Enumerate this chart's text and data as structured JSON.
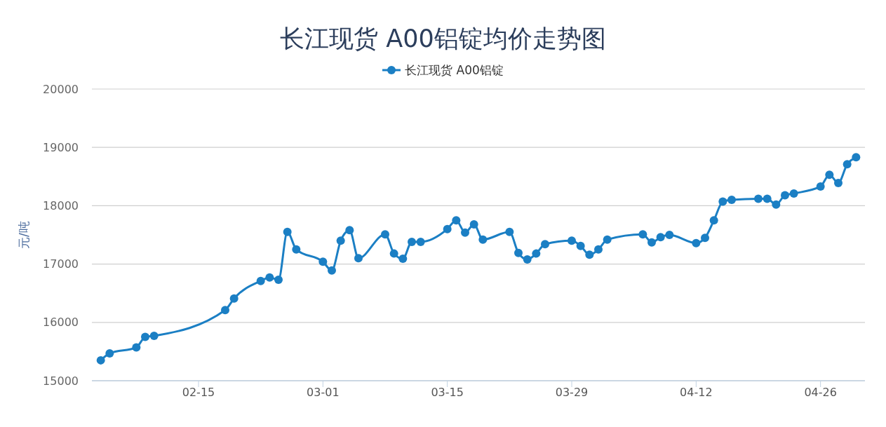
{
  "chart_data": {
    "type": "line",
    "title": "长江现货 A00铝锭均价走势图",
    "ylabel": "元/吨",
    "x": [
      "--02-04",
      "--02-05",
      "--02-08",
      "--02-09",
      "--02-10",
      "--02-18",
      "--02-19",
      "--02-22",
      "--02-23",
      "--02-24",
      "--02-25",
      "--02-26",
      "--03-01",
      "--03-02",
      "--03-03",
      "--03-04",
      "--03-05",
      "--03-08",
      "--03-09",
      "--03-10",
      "--03-11",
      "--03-12",
      "--03-15",
      "--03-16",
      "--03-17",
      "--03-18",
      "--03-19",
      "--03-22",
      "--03-23",
      "--03-24",
      "--03-25",
      "--03-26",
      "--03-29",
      "--03-30",
      "--03-31",
      "--04-01",
      "--04-02",
      "--04-06",
      "--04-07",
      "--04-08",
      "--04-09",
      "--04-12",
      "--04-13",
      "--04-14",
      "--04-15",
      "--04-16",
      "--04-19",
      "--04-20",
      "--04-21",
      "--04-22",
      "--04-23",
      "--04-26",
      "--04-27",
      "--04-28",
      "--04-29",
      "--04-30"
    ],
    "series": [
      {
        "name": "长江现货 A00铝锭",
        "color": "#1b7fc4",
        "values": [
          15350,
          15470,
          15570,
          15750,
          15770,
          16210,
          16410,
          16710,
          16770,
          16730,
          17550,
          17250,
          17040,
          16890,
          17400,
          17580,
          17100,
          17510,
          17180,
          17090,
          17380,
          17380,
          17600,
          17750,
          17540,
          17680,
          17420,
          17550,
          17190,
          17080,
          17180,
          17340,
          17400,
          17310,
          17160,
          17250,
          17420,
          17510,
          17370,
          17460,
          17500,
          17360,
          17450,
          17750,
          18070,
          18100,
          18120,
          18120,
          18020,
          18180,
          18210,
          18330,
          18530,
          18390,
          18710,
          18830
        ]
      }
    ],
    "xlim": [
      "--02-03",
      "--05-01"
    ],
    "xticks": [
      {
        "value": "--02-15",
        "label": "02-15"
      },
      {
        "value": "--03-01",
        "label": "03-01"
      },
      {
        "value": "--03-15",
        "label": "03-15"
      },
      {
        "value": "--03-29",
        "label": "03-29"
      },
      {
        "value": "--04-12",
        "label": "04-12"
      },
      {
        "value": "--04-26",
        "label": "04-26"
      }
    ],
    "ylim": [
      15000,
      20000
    ],
    "yticks": [
      15000,
      16000,
      17000,
      18000,
      19000,
      20000
    ],
    "grid": "y",
    "legend": "top",
    "marker": "circle",
    "line_style": "solid"
  }
}
